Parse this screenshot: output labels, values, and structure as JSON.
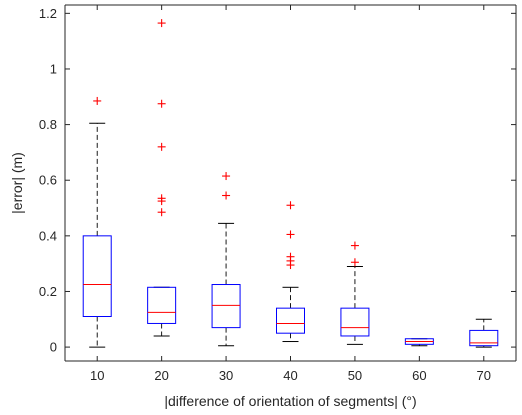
{
  "chart_data": {
    "type": "boxplot",
    "title": "",
    "xlabel": "|difference of orientation of segments| (°)",
    "ylabel": "|error| (m)",
    "categories": [
      "10",
      "20",
      "30",
      "40",
      "50",
      "60",
      "70"
    ],
    "ylim": [
      -0.05,
      1.23
    ],
    "yticks": [
      0,
      0.2,
      0.4,
      0.6,
      0.8,
      1,
      1.2
    ],
    "ytick_labels": [
      "0",
      "0.2",
      "0.4",
      "0.6",
      "0.8",
      "1",
      "1.2"
    ],
    "grid": false,
    "legend": "none",
    "boxes": [
      {
        "category": "10",
        "whisker_low": 0.0,
        "q1": 0.11,
        "median": 0.225,
        "q3": 0.4,
        "whisker_high": 0.805,
        "outliers": [
          0.885
        ]
      },
      {
        "category": "20",
        "whisker_low": 0.04,
        "q1": 0.085,
        "median": 0.125,
        "q3": 0.215,
        "whisker_high": 0.215,
        "outliers": [
          1.165,
          0.875,
          0.72,
          0.535,
          0.525,
          0.485
        ]
      },
      {
        "category": "30",
        "whisker_low": 0.005,
        "q1": 0.07,
        "median": 0.15,
        "q3": 0.225,
        "whisker_high": 0.445,
        "outliers": [
          0.615,
          0.545
        ]
      },
      {
        "category": "40",
        "whisker_low": 0.02,
        "q1": 0.05,
        "median": 0.085,
        "q3": 0.14,
        "whisker_high": 0.215,
        "outliers": [
          0.51,
          0.405,
          0.325,
          0.31,
          0.295
        ]
      },
      {
        "category": "50",
        "whisker_low": 0.01,
        "q1": 0.04,
        "median": 0.07,
        "q3": 0.14,
        "whisker_high": 0.29,
        "outliers": [
          0.365,
          0.305
        ]
      },
      {
        "category": "60",
        "whisker_low": 0.005,
        "q1": 0.01,
        "median": 0.02,
        "q3": 0.03,
        "whisker_high": 0.03,
        "outliers": []
      },
      {
        "category": "70",
        "whisker_low": 0.0,
        "q1": 0.005,
        "median": 0.015,
        "q3": 0.06,
        "whisker_high": 0.1,
        "outliers": []
      }
    ],
    "colors": {
      "box": "#0000ff",
      "median": "#ff0000",
      "outlier": "#ff0000",
      "whisker": "#000000",
      "axis": "#262626"
    }
  }
}
